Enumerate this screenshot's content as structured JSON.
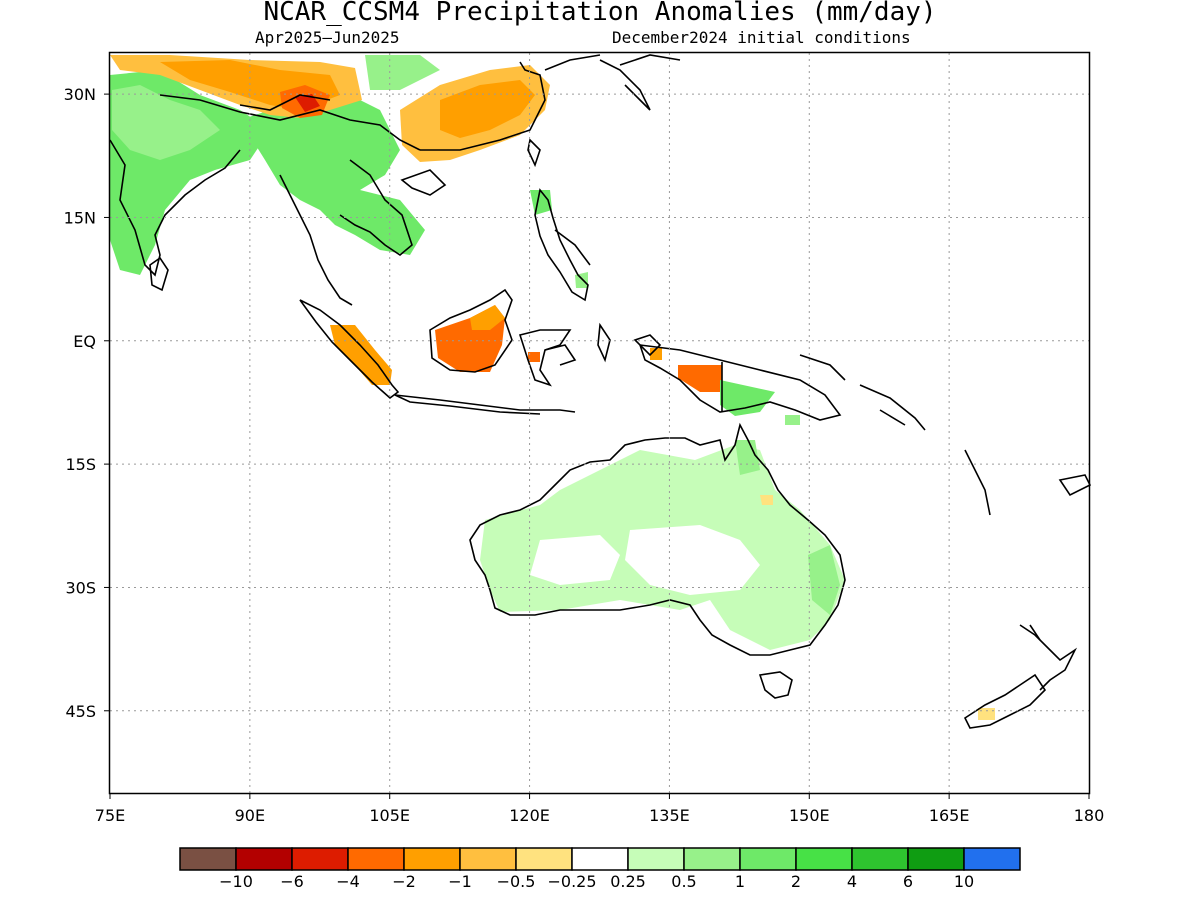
{
  "title": "NCAR_CCSM4 Precipitation Anomalies (mm/day)",
  "subtitle_left": "Apr2025–Jun2025",
  "subtitle_right": "December2024 initial conditions",
  "map": {
    "lon_range": [
      75,
      180
    ],
    "lat_range": [
      -55,
      35
    ],
    "lon_ticks": [
      {
        "v": 75,
        "label": "75E"
      },
      {
        "v": 90,
        "label": "90E"
      },
      {
        "v": 105,
        "label": "105E"
      },
      {
        "v": 120,
        "label": "120E"
      },
      {
        "v": 135,
        "label": "135E"
      },
      {
        "v": 150,
        "label": "150E"
      },
      {
        "v": 165,
        "label": "165E"
      },
      {
        "v": 180,
        "label": "180"
      }
    ],
    "lat_ticks": [
      {
        "v": 30,
        "label": "30N"
      },
      {
        "v": 15,
        "label": "15N"
      },
      {
        "v": 0,
        "label": "EQ"
      },
      {
        "v": -15,
        "label": "15S"
      },
      {
        "v": -30,
        "label": "30S"
      },
      {
        "v": -45,
        "label": "45S"
      }
    ],
    "grid": true
  },
  "colorbar": {
    "colors": [
      "#7a5043",
      "#b30000",
      "#dd1c00",
      "#ff6a00",
      "#ff9f00",
      "#ffbf3f",
      "#ffe27f",
      "#ffffff",
      "#c6fdb8",
      "#97f18a",
      "#6ee968",
      "#47e146",
      "#2ec42f",
      "#0f9d12",
      "#2170ee"
    ],
    "labels": [
      "−10",
      "−6",
      "−4",
      "−2",
      "−1",
      "−0.5",
      "−0.25",
      "0.25",
      "0.5",
      "1",
      "2",
      "4",
      "6",
      "10"
    ]
  }
}
